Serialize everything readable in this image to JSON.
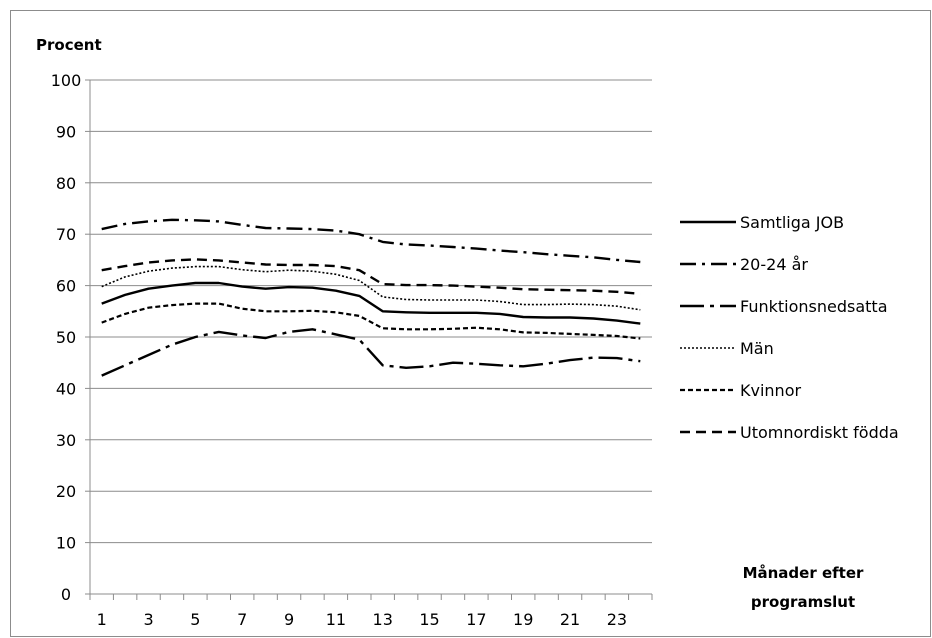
{
  "chart_data": {
    "type": "line",
    "ylabel": "Procent",
    "xlabel_line1": "Månader efter",
    "xlabel_line2": "programslut",
    "ylim": [
      0,
      100
    ],
    "yticks": [
      0,
      10,
      20,
      30,
      40,
      50,
      60,
      70,
      80,
      90,
      100
    ],
    "x": [
      1,
      2,
      3,
      4,
      5,
      6,
      7,
      8,
      9,
      10,
      11,
      12,
      13,
      14,
      15,
      16,
      17,
      18,
      19,
      20,
      21,
      22,
      23,
      24
    ],
    "xtick_labels": [
      "1",
      "3",
      "5",
      "7",
      "9",
      "11",
      "13",
      "15",
      "17",
      "19",
      "21",
      "23"
    ],
    "grid": "horizontal",
    "legend_position": "right",
    "series": [
      {
        "name": "Samtliga JOB",
        "style": "solid",
        "values": [
          56.5,
          58.2,
          59.4,
          60.0,
          60.5,
          60.5,
          59.8,
          59.4,
          59.7,
          59.6,
          59.0,
          58.0,
          55.0,
          54.8,
          54.7,
          54.7,
          54.7,
          54.5,
          53.9,
          53.8,
          53.8,
          53.6,
          53.2,
          52.6
        ]
      },
      {
        "name": "20-24 år",
        "style": "dash-dot",
        "values": [
          71.0,
          72.0,
          72.5,
          72.8,
          72.7,
          72.5,
          71.8,
          71.2,
          71.1,
          71.0,
          70.7,
          70.0,
          68.5,
          68.0,
          67.8,
          67.5,
          67.2,
          66.8,
          66.5,
          66.1,
          65.8,
          65.5,
          65.0,
          64.6
        ]
      },
      {
        "name": "Funktionsnedsatta",
        "style": "long-dash-dot",
        "values": [
          42.5,
          44.5,
          46.5,
          48.5,
          50.0,
          51.0,
          50.3,
          49.8,
          51.0,
          51.5,
          50.5,
          49.5,
          44.5,
          44.0,
          44.3,
          45.0,
          44.8,
          44.5,
          44.3,
          44.8,
          45.5,
          46.0,
          45.9,
          45.3
        ]
      },
      {
        "name": "Män",
        "style": "dotted",
        "values": [
          59.8,
          61.7,
          62.8,
          63.4,
          63.7,
          63.7,
          63.1,
          62.7,
          63.0,
          62.8,
          62.2,
          61.0,
          57.8,
          57.3,
          57.2,
          57.2,
          57.2,
          56.9,
          56.3,
          56.3,
          56.4,
          56.3,
          56.0,
          55.3
        ]
      },
      {
        "name": "Kvinnor",
        "style": "short-dash",
        "values": [
          52.8,
          54.5,
          55.7,
          56.2,
          56.5,
          56.5,
          55.5,
          55.0,
          55.0,
          55.1,
          54.8,
          54.1,
          51.7,
          51.5,
          51.5,
          51.6,
          51.8,
          51.5,
          50.9,
          50.8,
          50.6,
          50.4,
          50.2,
          49.7
        ]
      },
      {
        "name": "Utomnordiskt födda",
        "style": "dash",
        "values": [
          63.0,
          63.8,
          64.5,
          64.9,
          65.1,
          64.9,
          64.5,
          64.1,
          64.0,
          64.0,
          63.8,
          63.0,
          60.3,
          60.1,
          60.1,
          60.0,
          59.8,
          59.6,
          59.3,
          59.2,
          59.1,
          59.0,
          58.8,
          58.4
        ]
      }
    ]
  }
}
